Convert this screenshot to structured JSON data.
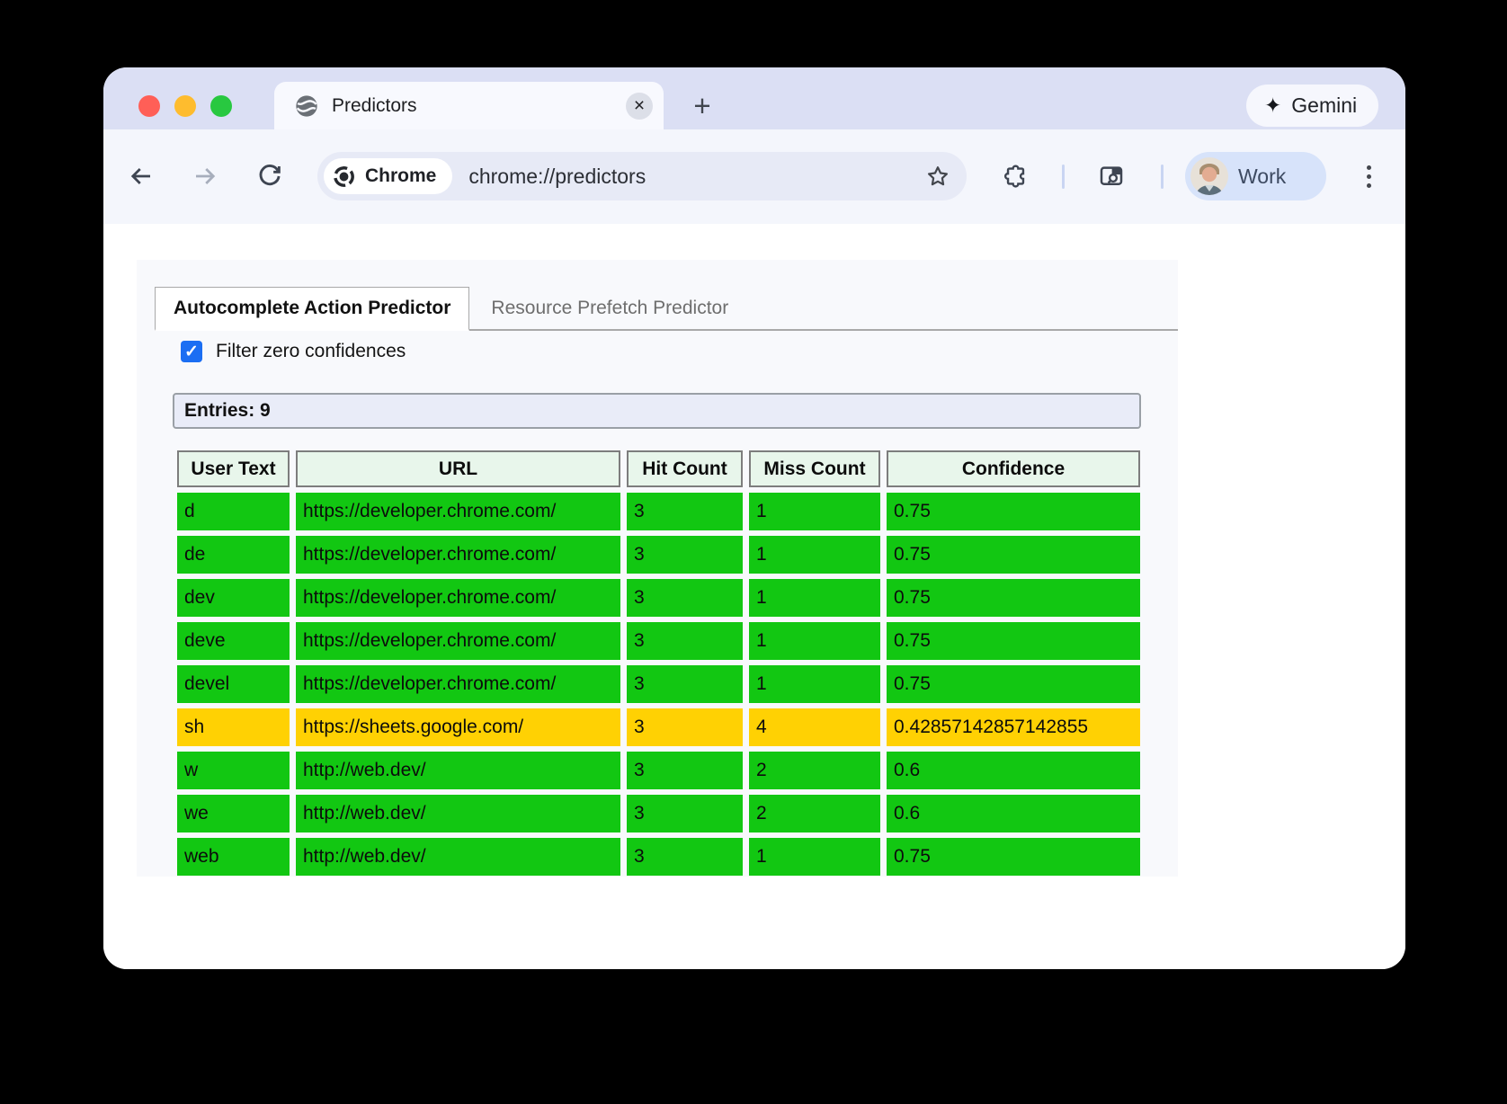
{
  "browser": {
    "tab_title": "Predictors",
    "gemini_label": "Gemini",
    "address": {
      "chip_label": "Chrome",
      "url": "chrome://predictors"
    },
    "profile_label": "Work"
  },
  "page": {
    "tabs": [
      {
        "label": "Autocomplete Action Predictor",
        "active": true
      },
      {
        "label": "Resource Prefetch Predictor",
        "active": false
      }
    ],
    "filter_label": "Filter zero confidences",
    "filter_checked": true,
    "entries_label": "Entries: 9",
    "table": {
      "columns": [
        "User Text",
        "URL",
        "Hit Count",
        "Miss Count",
        "Confidence"
      ],
      "rows": [
        {
          "cells": [
            "d",
            "https://developer.chrome.com/",
            "3",
            "1",
            "0.75"
          ],
          "color": "green"
        },
        {
          "cells": [
            "de",
            "https://developer.chrome.com/",
            "3",
            "1",
            "0.75"
          ],
          "color": "green"
        },
        {
          "cells": [
            "dev",
            "https://developer.chrome.com/",
            "3",
            "1",
            "0.75"
          ],
          "color": "green"
        },
        {
          "cells": [
            "deve",
            "https://developer.chrome.com/",
            "3",
            "1",
            "0.75"
          ],
          "color": "green"
        },
        {
          "cells": [
            "devel",
            "https://developer.chrome.com/",
            "3",
            "1",
            "0.75"
          ],
          "color": "green"
        },
        {
          "cells": [
            "sh",
            "https://sheets.google.com/",
            "3",
            "4",
            "0.42857142857142855"
          ],
          "color": "yellow"
        },
        {
          "cells": [
            "w",
            "http://web.dev/",
            "3",
            "2",
            "0.6"
          ],
          "color": "green"
        },
        {
          "cells": [
            "we",
            "http://web.dev/",
            "3",
            "2",
            "0.6"
          ],
          "color": "green"
        },
        {
          "cells": [
            "web",
            "http://web.dev/",
            "3",
            "1",
            "0.75"
          ],
          "color": "green"
        }
      ]
    }
  },
  "colors": {
    "row_green": "#12c712",
    "row_yellow": "#ffd103",
    "header_green": "#e8f6eb",
    "checkbox_blue": "#1b6ef3"
  },
  "icons": {
    "close": "×",
    "plus": "+",
    "spark": "✦",
    "check": "✓"
  }
}
